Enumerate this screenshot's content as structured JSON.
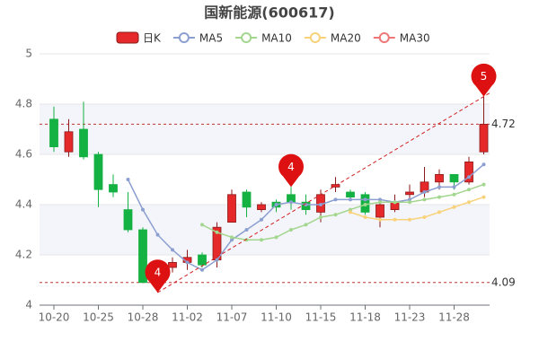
{
  "chart_data": {
    "type": "candlestick",
    "title": "国新能源(600617)",
    "categories": [
      "10-20",
      null,
      null,
      "10-25",
      null,
      null,
      "10-28",
      null,
      null,
      "11-02",
      null,
      null,
      "11-07",
      null,
      null,
      "11-10",
      null,
      null,
      "11-15",
      null,
      null,
      "11-18",
      null,
      null,
      "11-23",
      null,
      null,
      "11-28",
      null,
      null
    ],
    "candles": {
      "name": "日K",
      "up_color": "#e5292a",
      "down_color": "#14b143",
      "open": [
        4.74,
        4.61,
        4.7,
        4.6,
        4.48,
        4.38,
        4.3,
        4.14,
        4.15,
        4.17,
        4.2,
        4.18,
        4.33,
        4.45,
        4.38,
        4.41,
        4.44,
        4.41,
        4.37,
        4.47,
        4.45,
        4.44,
        4.35,
        4.38,
        4.44,
        4.45,
        4.49,
        4.52,
        4.49,
        4.61
      ],
      "close": [
        4.63,
        4.69,
        4.59,
        4.46,
        4.45,
        4.3,
        4.09,
        4.16,
        4.17,
        4.19,
        4.16,
        4.31,
        4.44,
        4.39,
        4.4,
        4.39,
        4.41,
        4.38,
        4.44,
        4.48,
        4.43,
        4.37,
        4.4,
        4.41,
        4.45,
        4.49,
        4.52,
        4.49,
        4.57,
        4.72
      ],
      "high": [
        4.79,
        4.74,
        4.81,
        4.61,
        4.52,
        4.45,
        4.31,
        4.18,
        4.19,
        4.22,
        4.21,
        4.33,
        4.46,
        4.46,
        4.41,
        4.42,
        4.47,
        4.44,
        4.46,
        4.51,
        4.46,
        4.45,
        4.41,
        4.44,
        4.48,
        4.55,
        4.54,
        4.52,
        4.59,
        4.83
      ],
      "low": [
        4.61,
        4.59,
        4.58,
        4.39,
        4.43,
        4.29,
        4.09,
        4.05,
        4.13,
        4.14,
        4.15,
        4.15,
        4.33,
        4.35,
        4.37,
        4.37,
        4.38,
        4.36,
        4.33,
        4.45,
        4.42,
        4.36,
        4.31,
        4.37,
        4.41,
        4.43,
        4.46,
        4.46,
        4.48,
        4.6
      ]
    },
    "series": [
      {
        "name": "MA5",
        "color": "#8c9fd1",
        "values": [
          null,
          null,
          null,
          null,
          null,
          4.5,
          4.38,
          4.28,
          4.22,
          4.17,
          4.14,
          4.18,
          4.26,
          4.3,
          4.34,
          4.4,
          4.41,
          4.4,
          4.4,
          4.42,
          4.42,
          4.42,
          4.42,
          4.41,
          4.42,
          4.45,
          4.47,
          4.47,
          4.51,
          4.56
        ]
      },
      {
        "name": "MA10",
        "color": "#a3d68e",
        "values": [
          null,
          null,
          null,
          null,
          null,
          null,
          null,
          null,
          null,
          null,
          4.32,
          4.29,
          4.27,
          4.26,
          4.26,
          4.27,
          4.3,
          4.32,
          4.35,
          4.36,
          4.38,
          4.4,
          4.41,
          4.41,
          4.41,
          4.42,
          4.43,
          4.44,
          4.46,
          4.48
        ]
      },
      {
        "name": "MA20",
        "color": "#f8d27a",
        "values": [
          null,
          null,
          null,
          null,
          null,
          null,
          null,
          null,
          null,
          null,
          null,
          null,
          null,
          null,
          null,
          null,
          null,
          null,
          null,
          null,
          4.37,
          4.35,
          4.34,
          4.34,
          4.34,
          4.35,
          4.37,
          4.39,
          4.41,
          4.43
        ]
      },
      {
        "name": "MA30",
        "color": "#ee7777",
        "values": [
          null,
          null,
          null,
          null,
          null,
          null,
          null,
          null,
          null,
          null,
          null,
          null,
          null,
          null,
          null,
          null,
          null,
          null,
          null,
          null,
          null,
          null,
          null,
          null,
          null,
          null,
          null,
          null,
          null,
          null
        ]
      }
    ],
    "ylim": [
      4,
      5
    ],
    "yticks": [
      4,
      4.2,
      4.4,
      4.6,
      4.8,
      5
    ],
    "hlines": [
      4.72,
      4.09
    ],
    "markers": [
      {
        "label": "4",
        "value": 4.05
      },
      {
        "label": "4",
        "value": 4.47
      },
      {
        "label": "5",
        "value": 4.83
      }
    ]
  }
}
